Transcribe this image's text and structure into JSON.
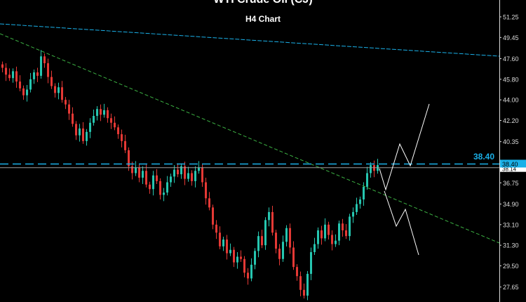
{
  "header": {
    "title": "WTI Crude Oil (CJ)",
    "subtitle": "H4 Chart"
  },
  "chart_data": {
    "type": "candlestick",
    "title": "WTI Crude Oil (CJ)",
    "subtitle": "H4 Chart",
    "y_ticks": [
      "51.25",
      "49.45",
      "47.60",
      "45.80",
      "44.00",
      "42.20",
      "40.35",
      "36.75",
      "34.90",
      "33.10",
      "31.30",
      "29.50",
      "27.65"
    ],
    "ylim": [
      26.5,
      52.7
    ],
    "closes": [
      46.8,
      46.2,
      45.9,
      46.5,
      45.6,
      45.0,
      44.4,
      44.9,
      45.8,
      46.4,
      46.1,
      47.8,
      47.2,
      46.0,
      45.2,
      44.6,
      45.1,
      44.0,
      43.6,
      42.8,
      41.9,
      40.9,
      41.5,
      40.4,
      41.2,
      42.0,
      42.6,
      43.2,
      42.7,
      43.1,
      42.4,
      42.0,
      41.6,
      41.0,
      40.4,
      39.6,
      38.2,
      37.6,
      38.1,
      37.2,
      37.8,
      36.6,
      36.2,
      37.4,
      36.9,
      35.7,
      35.9,
      36.8,
      37.3,
      37.9,
      37.5,
      38.2,
      37.1,
      37.6,
      36.9,
      37.8,
      38.1,
      36.8,
      35.4,
      34.6,
      33.1,
      32.4,
      31.2,
      31.8,
      30.6,
      30.9,
      29.8,
      30.3,
      30.1,
      28.9,
      28.4,
      29.6,
      30.8,
      32.1,
      31.3,
      33.5,
      34.2,
      32.4,
      31.0,
      30.1,
      31.6,
      32.8,
      31.1,
      29.4,
      28.6,
      27.4,
      26.9,
      28.8,
      30.7,
      31.4,
      32.6,
      31.9,
      33.1,
      32.2,
      31.4,
      31.7,
      33.2,
      32.6,
      32.1,
      33.8,
      34.2,
      34.9,
      35.3,
      36.4,
      37.6,
      38.3,
      37.8,
      38.3
    ],
    "resistance_level": {
      "value": 38.4,
      "label": "38.40"
    },
    "current_price": {
      "value": 38.14,
      "label": "38.14"
    },
    "colors": {
      "bull": "#26c6b0",
      "bear": "#e53935",
      "level": "#1ab0e8",
      "trend_down": "#3cb043",
      "trend_upper": "#1ab0e8",
      "projection": "#ffffff",
      "background": "#000000"
    }
  }
}
